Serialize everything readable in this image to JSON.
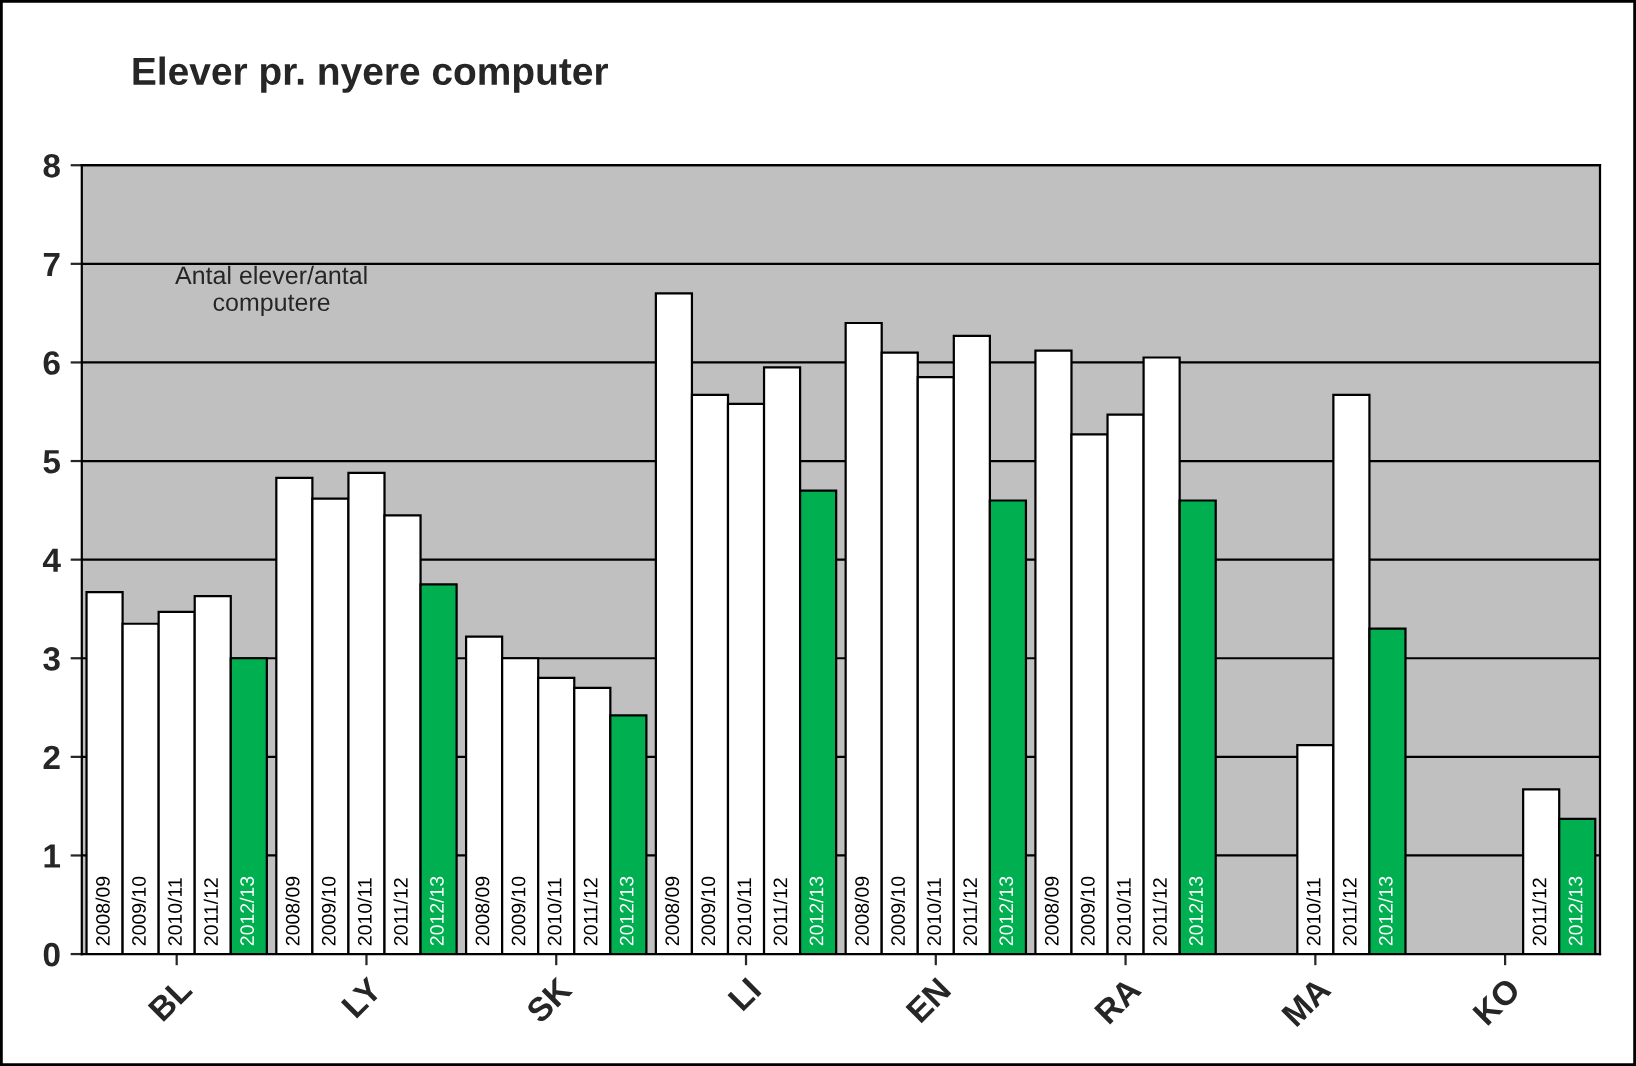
{
  "chart_data": {
    "type": "bar",
    "title": "Elever pr. nyere computer",
    "categories": [
      "BL",
      "LY",
      "SK",
      "LI",
      "EN",
      "RA",
      "MA",
      "KO"
    ],
    "series": [
      {
        "name": "2008/09",
        "color": "#ffffff",
        "values": [
          3.67,
          4.83,
          3.22,
          6.7,
          6.4,
          6.12,
          null,
          null
        ]
      },
      {
        "name": "2009/10",
        "color": "#ffffff",
        "values": [
          3.35,
          4.62,
          3.0,
          5.67,
          6.1,
          5.27,
          null,
          null
        ]
      },
      {
        "name": "2010/11",
        "color": "#ffffff",
        "values": [
          3.47,
          4.88,
          2.8,
          5.58,
          5.85,
          5.47,
          2.12,
          null
        ]
      },
      {
        "name": "2011/12",
        "color": "#ffffff",
        "values": [
          3.63,
          4.45,
          2.7,
          5.95,
          6.27,
          6.05,
          5.67,
          1.67
        ]
      },
      {
        "name": "2012/13",
        "color": "#00b050",
        "values": [
          3.0,
          3.75,
          2.42,
          4.7,
          4.6,
          4.6,
          3.3,
          1.37
        ]
      }
    ],
    "ylim": [
      0,
      8
    ],
    "yticks": [
      0,
      1,
      2,
      3,
      4,
      5,
      6,
      7,
      8
    ],
    "grid": "y",
    "legend": false,
    "annotations": [
      "Antal elever/antal\ncomputere"
    ]
  }
}
